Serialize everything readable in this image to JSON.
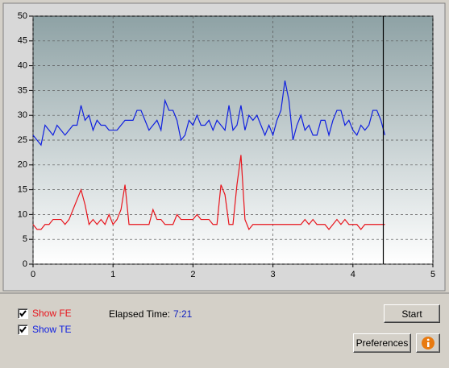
{
  "chart_data": {
    "type": "line",
    "x": [
      0,
      0.05,
      0.1,
      0.15,
      0.2,
      0.25,
      0.3,
      0.35,
      0.4,
      0.45,
      0.5,
      0.55,
      0.6,
      0.65,
      0.7,
      0.75,
      0.8,
      0.85,
      0.9,
      0.95,
      1,
      1.05,
      1.1,
      1.15,
      1.2,
      1.25,
      1.3,
      1.35,
      1.4,
      1.45,
      1.5,
      1.55,
      1.6,
      1.65,
      1.7,
      1.75,
      1.8,
      1.85,
      1.9,
      1.95,
      2,
      2.05,
      2.1,
      2.15,
      2.2,
      2.25,
      2.3,
      2.35,
      2.4,
      2.45,
      2.5,
      2.55,
      2.6,
      2.65,
      2.7,
      2.75,
      2.8,
      2.85,
      2.9,
      2.95,
      3,
      3.05,
      3.1,
      3.15,
      3.2,
      3.25,
      3.3,
      3.35,
      3.4,
      3.45,
      3.5,
      3.55,
      3.6,
      3.65,
      3.7,
      3.75,
      3.8,
      3.85,
      3.9,
      3.95,
      4,
      4.05,
      4.1,
      4.15,
      4.2,
      4.25,
      4.3,
      4.35,
      4.4
    ],
    "series": [
      {
        "name": "Show FE",
        "color": "#e8141c",
        "values": [
          8,
          7,
          7,
          8,
          8,
          9,
          9,
          9,
          8,
          9,
          11,
          13,
          15,
          12,
          8,
          9,
          8,
          9,
          8,
          10,
          8,
          9,
          11,
          16,
          8,
          8,
          8,
          8,
          8,
          8,
          11,
          9,
          9,
          8,
          8,
          8,
          10,
          9,
          9,
          9,
          9,
          10,
          9,
          9,
          9,
          8,
          8,
          16,
          14,
          8,
          8,
          16,
          22,
          9,
          7,
          8,
          8,
          8,
          8,
          8,
          8,
          8,
          8,
          8,
          8,
          8,
          8,
          8,
          9,
          8,
          9,
          8,
          8,
          8,
          7,
          8,
          9,
          8,
          9,
          8,
          8,
          8,
          7,
          8,
          8,
          8,
          8,
          8,
          8
        ]
      },
      {
        "name": "Show TE",
        "color": "#1020e0",
        "values": [
          26,
          25,
          24,
          28,
          27,
          26,
          28,
          27,
          26,
          27,
          28,
          28,
          32,
          29,
          30,
          27,
          29,
          28,
          28,
          27,
          27,
          27,
          28,
          29,
          29,
          29,
          31,
          31,
          29,
          27,
          28,
          29,
          27,
          33,
          31,
          31,
          29,
          25,
          26,
          29,
          28,
          30,
          28,
          28,
          29,
          27,
          29,
          28,
          27,
          32,
          27,
          28,
          32,
          27,
          30,
          29,
          30,
          28,
          26,
          28,
          26,
          29,
          31,
          37,
          33,
          25,
          28,
          30,
          27,
          28,
          26,
          26,
          29,
          29,
          26,
          29,
          31,
          31,
          28,
          29,
          27,
          26,
          28,
          27,
          28,
          31,
          31,
          29,
          26
        ]
      }
    ],
    "marker_x": 4.38,
    "xlim": [
      0,
      5
    ],
    "xticks": [
      0,
      1,
      2,
      3,
      4,
      5
    ],
    "ylim": [
      0,
      50
    ],
    "yticks": [
      0,
      5,
      10,
      15,
      20,
      25,
      30,
      35,
      40,
      45,
      50
    ],
    "grid": true
  },
  "status": {
    "elapsed_label": "Elapsed Time:",
    "elapsed_value": "7:21"
  },
  "buttons": {
    "start": "Start",
    "preferences": "Preferences"
  }
}
